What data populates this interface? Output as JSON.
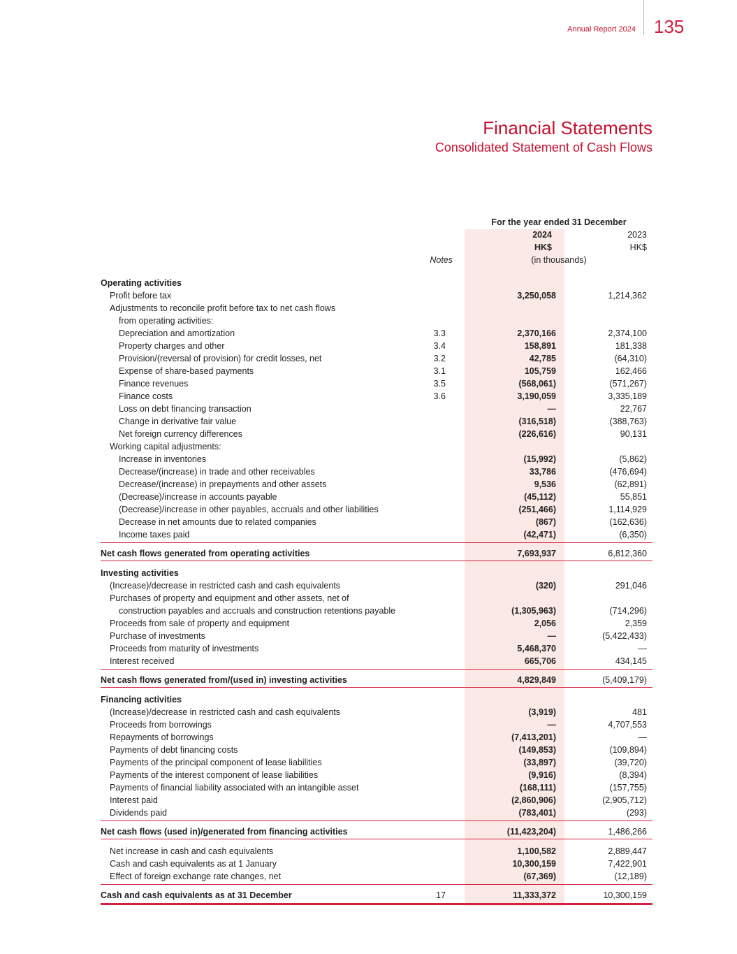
{
  "header": {
    "report": "Annual Report 2024",
    "page": "135"
  },
  "title": "Financial Statements",
  "subtitle": "Consolidated Statement of Cash Flows",
  "table_header": {
    "period": "For the year ended 31 December",
    "year_current": "2024",
    "year_prior": "2023",
    "currency_current": "HK$",
    "currency_prior": "HK$",
    "notes": "Notes",
    "unit": "(in thousands)"
  },
  "sections": [
    {
      "title": "Operating activities",
      "rows": [
        {
          "label": "Profit before tax",
          "values": [
            "3,250,058",
            "1,214,362"
          ]
        },
        {
          "lines": [
            "Adjustments to reconcile profit before tax to net cash flows",
            "from operating activities:"
          ],
          "items": [
            {
              "label": "Depreciation and amortization",
              "note": "3.3",
              "values": [
                "2,370,166",
                "2,374,100"
              ]
            },
            {
              "label": "Property charges and other",
              "note": "3.4",
              "values": [
                "158,891",
                "181,338"
              ]
            },
            {
              "label": "Provision/(reversal of provision) for credit losses, net",
              "note": "3.2",
              "values": [
                "42,785",
                "(64,310)"
              ]
            },
            {
              "label": "Expense of share-based payments",
              "note": "3.1",
              "values": [
                "105,759",
                "162,466"
              ]
            },
            {
              "label": "Finance revenues",
              "note": "3.5",
              "values": [
                "(568,061)",
                "(571,267)"
              ]
            },
            {
              "label": "Finance costs",
              "note": "3.6",
              "values": [
                "3,190,059",
                "3,335,189"
              ]
            },
            {
              "label": "Loss on debt financing transaction",
              "values": [
                "—",
                "22,767"
              ]
            },
            {
              "label": "Change in derivative fair value",
              "values": [
                "(316,518)",
                "(388,763)"
              ]
            },
            {
              "label": "Net foreign currency differences",
              "values": [
                "(226,616)",
                "90,131"
              ]
            }
          ]
        },
        {
          "label": "Working capital adjustments:",
          "items": [
            {
              "label": "Increase in inventories",
              "values": [
                "(15,992)",
                "(5,862)"
              ]
            },
            {
              "label": "Decrease/(increase) in trade and other receivables",
              "values": [
                "33,786",
                "(476,694)"
              ]
            },
            {
              "label": "Decrease/(increase) in prepayments and other assets",
              "values": [
                "9,536",
                "(62,891)"
              ]
            },
            {
              "label": "(Decrease)/increase in accounts payable",
              "values": [
                "(45,112)",
                "55,851"
              ]
            },
            {
              "label": "(Decrease)/increase in other payables, accruals and other liabilities",
              "values": [
                "(251,466)",
                "1,114,929"
              ]
            },
            {
              "label": "Decrease in net amounts due to related companies",
              "values": [
                "(867)",
                "(162,636)"
              ]
            },
            {
              "label": "Income taxes paid",
              "values": [
                "(42,471)",
                "(6,350)"
              ]
            }
          ]
        }
      ],
      "total": {
        "label": "Net cash flows generated from operating activities",
        "values": [
          "7,693,937",
          "6,812,360"
        ]
      }
    },
    {
      "title": "Investing activities",
      "rows": [
        {
          "label": "(Increase)/decrease in restricted cash and cash equivalents",
          "values": [
            "(320)",
            "291,046"
          ]
        },
        {
          "lines": [
            "Purchases of property and equipment and other assets, net of",
            "construction payables and accruals and construction retentions payable"
          ],
          "values": [
            "(1,305,963)",
            "(714,296)"
          ]
        },
        {
          "label": "Proceeds from sale of property and equipment",
          "values": [
            "2,056",
            "2,359"
          ]
        },
        {
          "label": "Purchase of investments",
          "values": [
            "—",
            "(5,422,433)"
          ]
        },
        {
          "label": "Proceeds from maturity of investments",
          "values": [
            "5,468,370",
            "—"
          ]
        },
        {
          "label": "Interest received",
          "values": [
            "665,706",
            "434,145"
          ]
        }
      ],
      "total": {
        "label": "Net cash flows generated from/(used in) investing activities",
        "values": [
          "4,829,849",
          "(5,409,179)"
        ]
      }
    },
    {
      "title": "Financing activities",
      "rows": [
        {
          "label": "(Increase)/decrease in restricted cash and cash equivalents",
          "values": [
            "(3,919)",
            "481"
          ]
        },
        {
          "label": "Proceeds from borrowings",
          "values": [
            "—",
            "4,707,553"
          ]
        },
        {
          "label": "Repayments of borrowings",
          "values": [
            "(7,413,201)",
            "—"
          ]
        },
        {
          "label": "Payments of debt financing costs",
          "values": [
            "(149,853)",
            "(109,894)"
          ]
        },
        {
          "label": "Payments of the principal component of lease liabilities",
          "values": [
            "(33,897)",
            "(39,720)"
          ]
        },
        {
          "label": "Payments of the interest component of lease liabilities",
          "values": [
            "(9,916)",
            "(8,394)"
          ]
        },
        {
          "label": "Payments of financial liability associated with an intangible asset",
          "values": [
            "(168,111)",
            "(157,755)"
          ]
        },
        {
          "label": "Interest paid",
          "values": [
            "(2,860,906)",
            "(2,905,712)"
          ]
        },
        {
          "label": "Dividends paid",
          "values": [
            "(783,401)",
            "(293)"
          ]
        }
      ],
      "total": {
        "label": "Net cash flows (used in)/generated from financing activities",
        "values": [
          "(11,423,204)",
          "1,486,266"
        ]
      }
    },
    {
      "rows": [
        {
          "label": "Net increase in cash and cash equivalents",
          "values": [
            "1,100,582",
            "2,889,447"
          ]
        },
        {
          "label": "Cash and cash equivalents as at 1 January",
          "values": [
            "10,300,159",
            "7,422,901"
          ]
        },
        {
          "label": "Effect of foreign exchange rate changes, net",
          "values": [
            "(67,369)",
            "(12,189)"
          ]
        }
      ],
      "total": {
        "label": "Cash and cash equivalents as at 31 December",
        "note": "17",
        "values": [
          "11,333,372",
          "10,300,159"
        ]
      }
    }
  ]
}
